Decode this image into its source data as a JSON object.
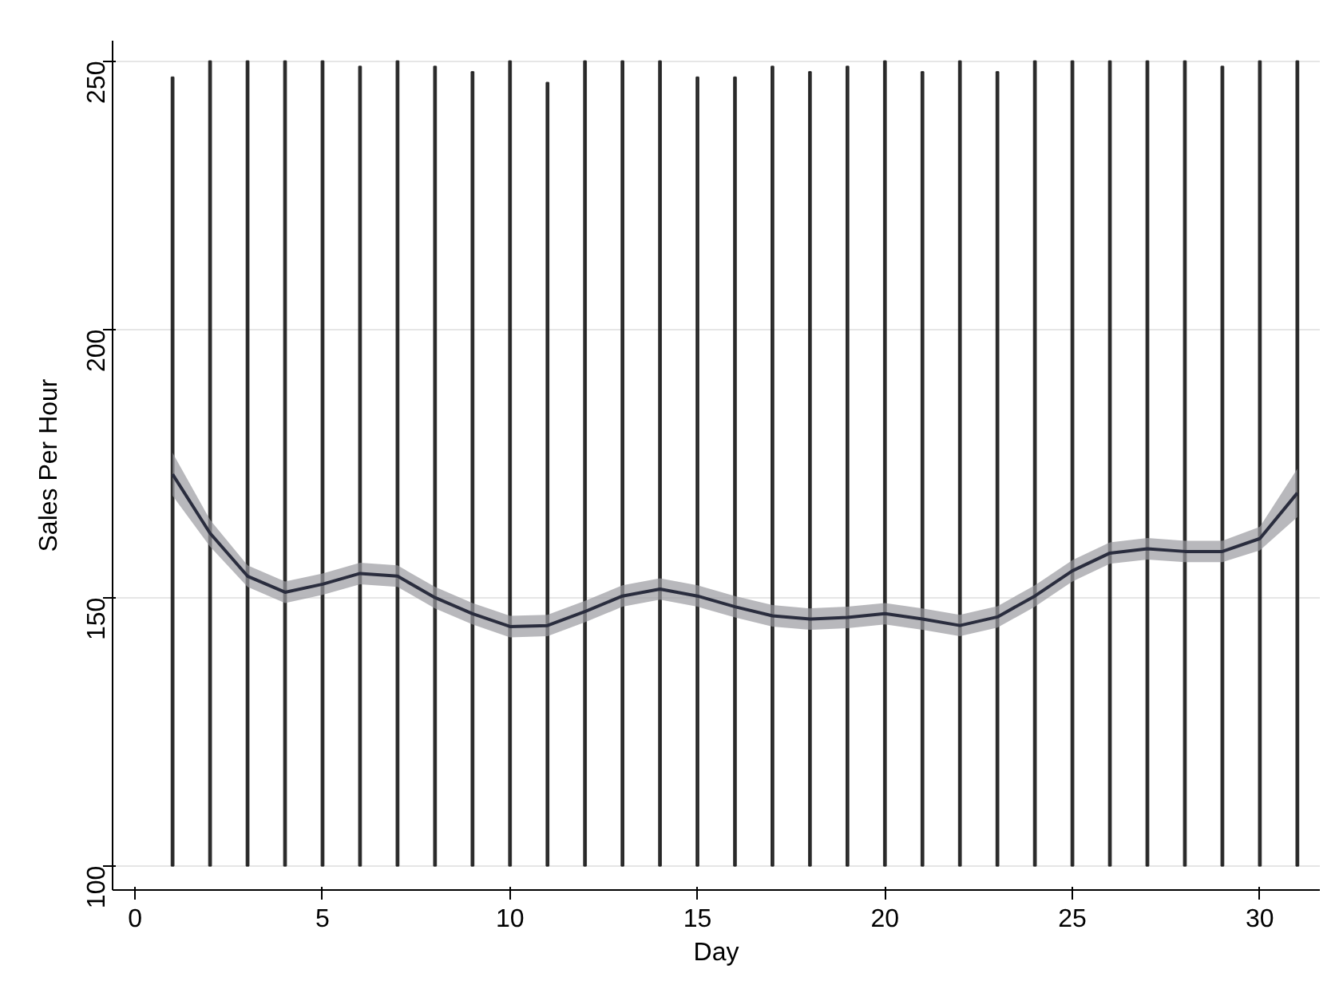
{
  "chart_data": {
    "type": "line",
    "xlabel": "Day",
    "ylabel": "Sales Per Hour",
    "xlim": [
      -0.6,
      31.6
    ],
    "ylim": [
      95.5,
      253.8
    ],
    "xticks": [
      0,
      5,
      10,
      15,
      20,
      25,
      30
    ],
    "yticks": [
      100,
      150,
      200,
      250
    ],
    "grid": "y",
    "marker": "none",
    "line_style": "solid",
    "series": [
      {
        "type": "bar",
        "color": "#111111",
        "base": [
          100,
          100,
          100,
          100,
          100,
          100,
          100,
          100,
          100,
          100,
          100,
          100,
          100,
          100,
          100,
          100,
          100,
          100,
          100,
          100,
          100,
          100,
          100,
          100,
          100,
          100,
          100,
          100,
          100,
          100,
          100
        ],
        "x": [
          1,
          2,
          3,
          4,
          5,
          6,
          7,
          8,
          9,
          10,
          11,
          12,
          13,
          14,
          15,
          16,
          17,
          18,
          19,
          20,
          21,
          22,
          23,
          24,
          25,
          26,
          27,
          28,
          29,
          30,
          31
        ],
        "values": [
          147,
          150,
          150,
          150,
          150,
          149,
          150,
          149,
          148,
          150,
          146,
          150,
          150,
          150,
          147,
          147,
          149,
          148,
          149,
          150,
          148,
          150,
          148,
          150,
          150,
          150,
          150,
          150,
          149,
          150,
          150
        ]
      },
      {
        "color": "#2a2d3e",
        "x": [
          1,
          2,
          3,
          4,
          5,
          6,
          7,
          8,
          9,
          10,
          11,
          12,
          13,
          14,
          15,
          16,
          17,
          18,
          19,
          20,
          21,
          22,
          23,
          24,
          25,
          26,
          27,
          28,
          29,
          30,
          31
        ],
        "values": [
          173,
          162,
          154,
          151,
          152.5,
          154.5,
          154,
          150,
          147,
          144.6,
          144.8,
          147.4,
          150.3,
          151.6,
          150.3,
          148.3,
          146.6,
          146,
          146.3,
          147,
          146,
          144.8,
          146.4,
          150.3,
          155,
          158.3,
          159.1,
          158.6,
          158.6,
          161,
          169.5
        ],
        "lower": [
          169,
          159.5,
          152,
          149,
          150.5,
          152.5,
          152,
          148,
          145,
          142.6,
          142.8,
          145.4,
          148.3,
          149.6,
          148.3,
          146.3,
          144.6,
          144,
          144.3,
          145,
          144,
          142.8,
          144.4,
          148.3,
          153,
          156.3,
          157.1,
          156.6,
          156.6,
          158.8,
          165
        ],
        "upper": [
          177,
          164.5,
          156,
          153,
          154.5,
          156.5,
          156,
          152,
          149,
          146.6,
          146.8,
          149.4,
          152.3,
          153.6,
          152.3,
          150.3,
          148.6,
          148,
          148.3,
          149,
          148,
          146.8,
          148.4,
          152.3,
          157,
          160.3,
          161.1,
          160.6,
          160.6,
          163.2,
          174
        ]
      }
    ]
  }
}
